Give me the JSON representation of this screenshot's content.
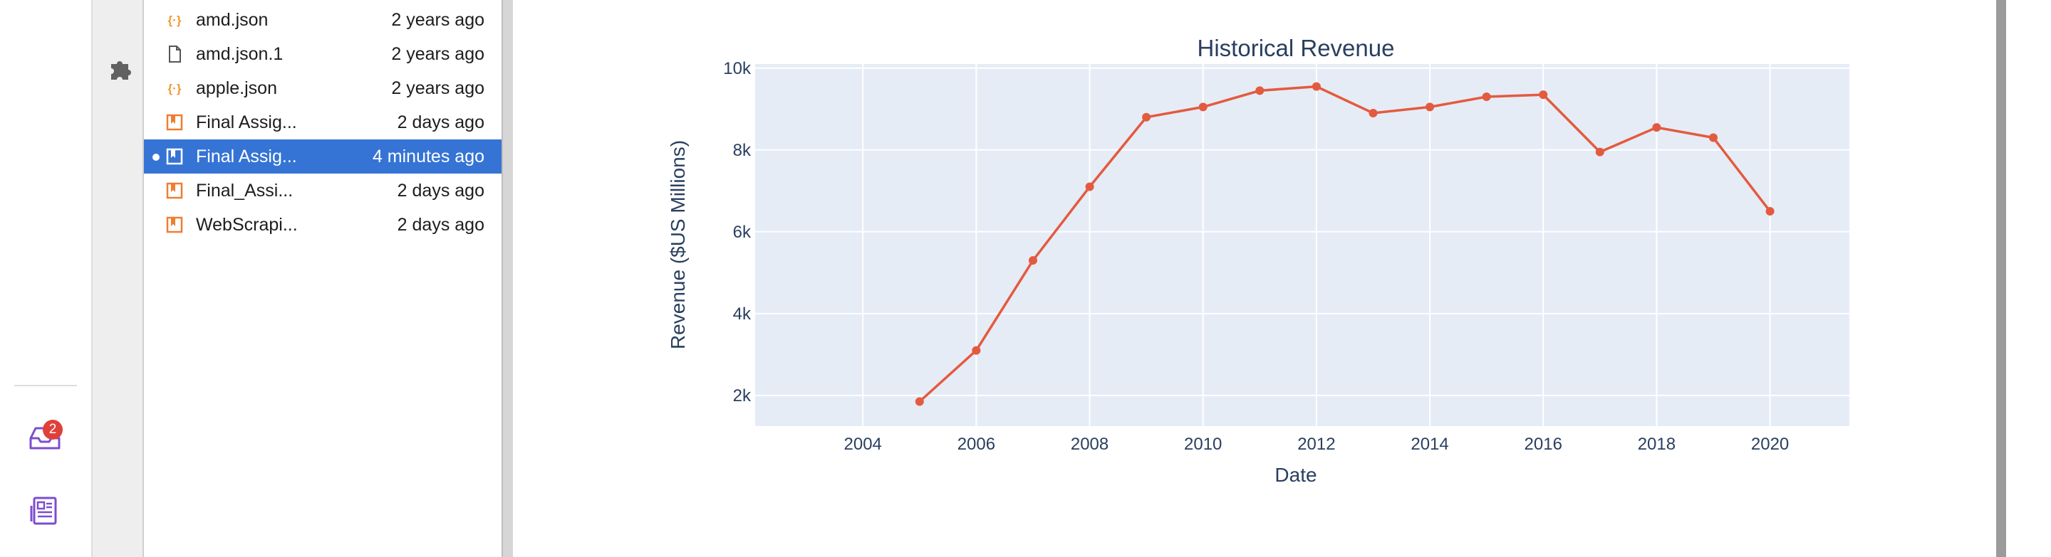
{
  "activity_bar": {
    "inbox_badge": "2",
    "icons": [
      "list-icon",
      "puzzle-icon",
      "inbox-icon",
      "newspaper-icon"
    ]
  },
  "file_browser": {
    "files": [
      {
        "name": "amd.json",
        "modified": "2 years ago",
        "icon": "json-icon",
        "selected": false
      },
      {
        "name": "amd.json.1",
        "modified": "2 years ago",
        "icon": "file-icon",
        "selected": false
      },
      {
        "name": "apple.json",
        "modified": "2 years ago",
        "icon": "json-icon",
        "selected": false
      },
      {
        "name": "Final Assig...",
        "modified": "2 days ago",
        "icon": "notebook-icon",
        "selected": false
      },
      {
        "name": "Final Assig...",
        "modified": "4 minutes ago",
        "icon": "notebook-icon",
        "selected": true
      },
      {
        "name": "Final_Assi...",
        "modified": "2 days ago",
        "icon": "notebook-icon",
        "selected": false
      },
      {
        "name": "WebScrapi...",
        "modified": "2 days ago",
        "icon": "notebook-icon",
        "selected": false
      }
    ]
  },
  "colors": {
    "accent": "#3574d4",
    "line": "#e45a3f",
    "plot_bg": "#e5ecf6",
    "text": "#2a3f5f",
    "json_icon": "#f09a30",
    "notebook_icon": "#ef7d31",
    "extension_icon": "#666666",
    "activity_icon": "#7c4dcf",
    "badge": "#e0403a"
  },
  "chart_data": {
    "type": "line",
    "title": "Historical Revenue",
    "xlabel": "Date",
    "ylabel": "Revenue ($US Millions)",
    "x": [
      2005,
      2006,
      2007,
      2008,
      2009,
      2010,
      2011,
      2012,
      2013,
      2014,
      2015,
      2016,
      2017,
      2018,
      2019,
      2020
    ],
    "y": [
      1850,
      3100,
      5300,
      7100,
      8800,
      9050,
      9450,
      9550,
      8900,
      9050,
      9300,
      9350,
      7950,
      8550,
      8300,
      6500
    ],
    "xlim": [
      2002.1,
      2021.4
    ],
    "ylim": [
      1250,
      10100
    ],
    "xticks": [
      2004,
      2006,
      2008,
      2010,
      2012,
      2014,
      2016,
      2018,
      2020
    ],
    "yticks": [
      2000,
      4000,
      6000,
      8000,
      10000
    ],
    "ytick_labels": [
      "2k",
      "4k",
      "6k",
      "8k",
      "10k"
    ],
    "grid": true,
    "markers": true
  }
}
